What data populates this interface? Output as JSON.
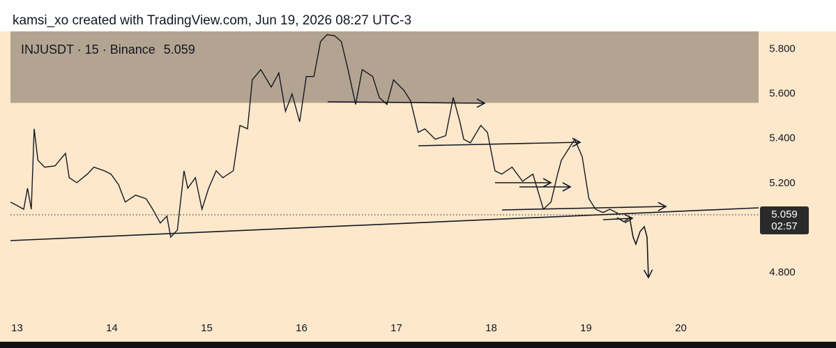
{
  "attribution": "kamsi_xo created with TradingView.com, Jun 19, 2026 08:27 UTC-3",
  "chart_data": {
    "type": "line",
    "title": "INJUSDT · 15 · Binance",
    "last_price": 5.059,
    "countdown": "02:57",
    "color": "#131722",
    "background": "#fde8cb",
    "zone": {
      "low": 5.56,
      "high": 5.88,
      "color": "#b3a491"
    },
    "x": [
      12.93,
      13.0,
      13.07,
      13.11,
      13.15,
      13.18,
      13.22,
      13.29,
      13.4,
      13.51,
      13.55,
      13.63,
      13.74,
      13.81,
      13.92,
      13.99,
      14.07,
      14.14,
      14.25,
      14.36,
      14.43,
      14.51,
      14.58,
      14.62,
      14.69,
      14.76,
      14.8,
      14.88,
      14.95,
      15.02,
      15.1,
      15.17,
      15.28,
      15.35,
      15.43,
      15.48,
      15.57,
      15.68,
      15.76,
      15.83,
      15.9,
      15.98,
      16.05,
      16.13,
      16.2,
      16.27,
      16.35,
      16.42,
      16.49,
      16.57,
      16.64,
      16.75,
      16.82,
      16.9,
      16.97,
      17.08,
      17.15,
      17.23,
      17.3,
      17.41,
      17.52,
      17.6,
      17.67,
      17.71,
      17.78,
      17.89,
      17.96,
      18.04,
      18.11,
      18.22,
      18.33,
      18.44,
      18.55,
      18.63,
      18.7,
      18.74,
      18.81,
      18.88,
      18.96,
      19.03,
      19.1,
      19.18,
      19.25,
      19.32,
      19.36
    ],
    "values": [
      5.116,
      5.1,
      5.084,
      5.178,
      5.084,
      5.444,
      5.303,
      5.272,
      5.278,
      5.334,
      5.225,
      5.203,
      5.241,
      5.272,
      5.256,
      5.241,
      5.194,
      5.116,
      5.147,
      5.131,
      5.084,
      5.022,
      5.053,
      4.959,
      4.991,
      5.256,
      5.178,
      5.225,
      5.084,
      5.178,
      5.256,
      5.225,
      5.256,
      5.459,
      5.444,
      5.663,
      5.709,
      5.631,
      5.694,
      5.522,
      5.6,
      5.475,
      5.678,
      5.678,
      5.834,
      5.866,
      5.86,
      5.834,
      5.709,
      5.553,
      5.709,
      5.678,
      5.584,
      5.553,
      5.663,
      5.616,
      5.569,
      5.428,
      5.444,
      5.397,
      5.413,
      5.584,
      5.475,
      5.397,
      5.381,
      5.459,
      5.428,
      5.256,
      5.241,
      5.272,
      5.209,
      5.241,
      5.084,
      5.116,
      5.241,
      5.303,
      5.35,
      5.397,
      5.319,
      5.131,
      5.084,
      5.069,
      5.084,
      5.069,
      5.059
    ],
    "xlim": [
      12.93,
      20.82
    ],
    "ylim": [
      4.6,
      5.88
    ],
    "xticks": [
      13,
      14,
      15,
      16,
      17,
      18,
      19,
      20
    ],
    "yticks": [
      {
        "value": 4.8,
        "label": "4.800"
      },
      {
        "value": 5.2,
        "label": "5.200"
      },
      {
        "value": 5.4,
        "label": "5.400"
      },
      {
        "value": 5.6,
        "label": "5.600"
      },
      {
        "value": 5.8,
        "label": "5.800"
      }
    ]
  }
}
